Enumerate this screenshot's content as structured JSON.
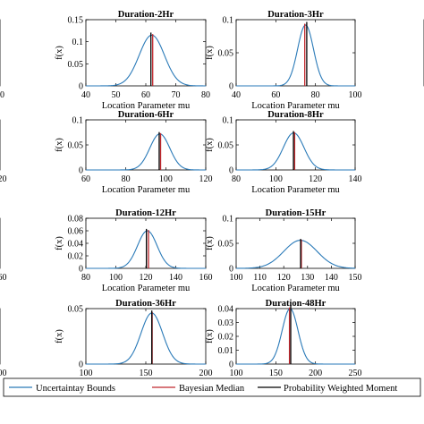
{
  "colors": {
    "bounds": "#2a7ab8",
    "median": "#c0272d",
    "pwm": "#000000"
  },
  "legend": {
    "bounds_label": "Uncertaintay Bounds",
    "median_label": "Bayesian Median",
    "pwm_label": "Probability Weighted Moment"
  },
  "chart_data": [
    {
      "type": "line",
      "title": "",
      "xlabel": "",
      "ylabel": "",
      "xlim": [
        null,
        60
      ],
      "ylim": [
        null,
        null
      ],
      "xticks": [
        "60"
      ],
      "yticks": [],
      "mu": null,
      "sigma": null,
      "peak": null,
      "median": null,
      "pwm": null
    },
    {
      "type": "line",
      "title": "Duration-2Hr",
      "xlabel": "Location Parameter mu",
      "ylabel": "f(x)",
      "xlim": [
        40,
        80
      ],
      "ylim": [
        0,
        0.15
      ],
      "xticks": [
        "40",
        "50",
        "60",
        "70",
        "80"
      ],
      "yticks": [
        "0",
        "0.05",
        "0.1",
        "0.15"
      ],
      "mu": 62,
      "sigma": 4.2,
      "peak": 0.115,
      "median": 62.3,
      "pwm": 61.7
    },
    {
      "type": "line",
      "title": "Duration-3Hr",
      "xlabel": "Location Parameter mu",
      "ylabel": "f(x)",
      "xlim": [
        40,
        100
      ],
      "ylim": [
        0,
        0.1
      ],
      "xticks": [
        "40",
        "60",
        "80",
        "100"
      ],
      "yticks": [
        "0",
        "0.05",
        "0.1"
      ],
      "mu": 75,
      "sigma": 4.0,
      "peak": 0.092,
      "median": 74.6,
      "pwm": 75.6
    },
    {
      "type": "line",
      "title": "",
      "xlabel": "",
      "ylabel": "",
      "xlim": [
        null,
        120
      ],
      "ylim": [
        null,
        null
      ],
      "xticks": [
        "120"
      ],
      "yticks": [],
      "mu": null,
      "sigma": null,
      "peak": null,
      "median": null,
      "pwm": null
    },
    {
      "type": "line",
      "title": "Duration-6Hr",
      "xlabel": "Location Parameter mu",
      "ylabel": "f(x)",
      "xlim": [
        60,
        120
      ],
      "ylim": [
        0,
        0.1
      ],
      "xticks": [
        "60",
        "80",
        "100",
        "120"
      ],
      "yticks": [
        "0",
        "0.05",
        "0.1"
      ],
      "mu": 97,
      "sigma": 5.0,
      "peak": 0.072,
      "median": 97.4,
      "pwm": 96.7
    },
    {
      "type": "line",
      "title": "Duration-8Hr",
      "xlabel": "Location Parameter mu",
      "ylabel": "f(x)",
      "xlim": [
        80,
        140
      ],
      "ylim": [
        0,
        0.1
      ],
      "xticks": [
        "80",
        "100",
        "120",
        "140"
      ],
      "yticks": [
        "0",
        "0.05",
        "0.1"
      ],
      "mu": 109,
      "sigma": 5.2,
      "peak": 0.074,
      "median": 109.5,
      "pwm": 108.9
    },
    {
      "type": "line",
      "title": "",
      "xlabel": "",
      "ylabel": "",
      "xlim": [
        null,
        160
      ],
      "ylim": [
        null,
        null
      ],
      "xticks": [
        "160"
      ],
      "yticks": [],
      "mu": null,
      "sigma": null,
      "peak": null,
      "median": null,
      "pwm": null
    },
    {
      "type": "line",
      "title": "Duration-12Hr",
      "xlabel": "Location Parameter mu",
      "ylabel": "f(x)",
      "xlim": [
        80,
        160
      ],
      "ylim": [
        0,
        0.08
      ],
      "xticks": [
        "80",
        "100",
        "120",
        "140",
        "160"
      ],
      "yticks": [
        "0",
        "0.02",
        "0.04",
        "0.06",
        "0.08"
      ],
      "mu": 121,
      "sigma": 6.5,
      "peak": 0.06,
      "median": 121.8,
      "pwm": 120.4
    },
    {
      "type": "line",
      "title": "Duration-15Hr",
      "xlabel": "Location Parameter mu",
      "ylabel": "f(x)",
      "xlim": [
        100,
        150
      ],
      "ylim": [
        0,
        0.1
      ],
      "xticks": [
        "100",
        "110",
        "120",
        "130",
        "140",
        "150"
      ],
      "yticks": [
        "0",
        "0.05",
        "0.1"
      ],
      "mu": 127,
      "sigma": 7.0,
      "peak": 0.056,
      "median": 127.4,
      "pwm": 127.1
    },
    {
      "type": "line",
      "title": "",
      "xlabel": "",
      "ylabel": "",
      "xlim": [
        null,
        200
      ],
      "ylim": [
        null,
        null
      ],
      "xticks": [
        "200"
      ],
      "yticks": [],
      "mu": null,
      "sigma": null,
      "peak": null,
      "median": null,
      "pwm": null
    },
    {
      "type": "line",
      "title": "Duration-36Hr",
      "xlabel": "Location Parameter mu",
      "ylabel": "f(x)",
      "xlim": [
        100,
        200
      ],
      "ylim": [
        0,
        0.05
      ],
      "xticks": [
        "100",
        "150",
        "200"
      ],
      "yticks": [
        "0",
        "0.05"
      ],
      "mu": 155,
      "sigma": 9.0,
      "peak": 0.046,
      "median": 155.3,
      "pwm": 155.0
    },
    {
      "type": "line",
      "title": "Duration-48Hr",
      "xlabel": "Location Parameter mu",
      "ylabel": "f(x)",
      "xlim": [
        100,
        250
      ],
      "ylim": [
        0,
        0.04
      ],
      "xticks": [
        "100",
        "150",
        "200",
        "250"
      ],
      "yticks": [
        "0",
        "0.01",
        "0.02",
        "0.03",
        "0.04"
      ],
      "mu": 168,
      "sigma": 10.0,
      "peak": 0.04,
      "median": 167.2,
      "pwm": 168.8
    },
    {
      "type": "line",
      "title": "",
      "xlabel": "",
      "ylabel": "",
      "xlim": [
        null,
        null
      ],
      "ylim": [
        null,
        null
      ],
      "xticks": [],
      "yticks": [],
      "mu": null,
      "sigma": null,
      "peak": null,
      "median": null,
      "pwm": null
    }
  ]
}
